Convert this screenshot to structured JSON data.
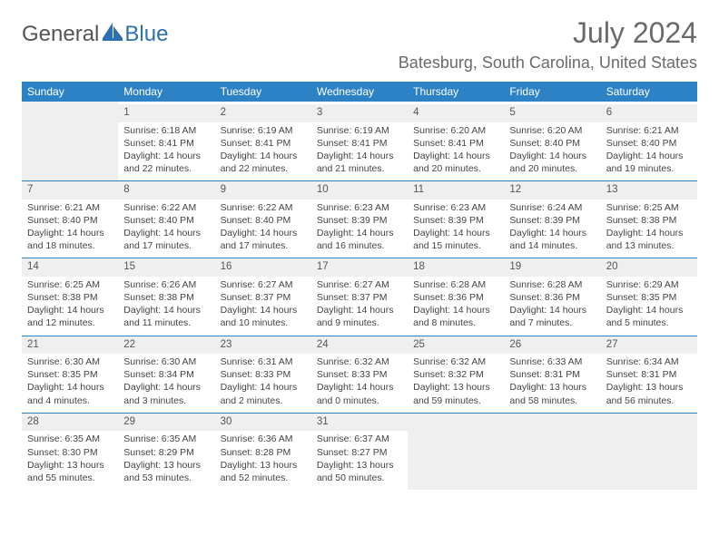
{
  "logo": {
    "general": "General",
    "blue": "Blue"
  },
  "title": "July 2024",
  "location": "Batesburg, South Carolina, United States",
  "colors": {
    "header_bg": "#2d82c6",
    "header_text": "#ffffff",
    "daynum_bg": "#efefef",
    "text": "#444444",
    "title_color": "#6a6a6a",
    "rule": "#2d82c6"
  },
  "day_headers": [
    "Sunday",
    "Monday",
    "Tuesday",
    "Wednesday",
    "Thursday",
    "Friday",
    "Saturday"
  ],
  "weeks": [
    [
      null,
      {
        "n": "1",
        "sr": "Sunrise: 6:18 AM",
        "ss": "Sunset: 8:41 PM",
        "d1": "Daylight: 14 hours",
        "d2": "and 22 minutes."
      },
      {
        "n": "2",
        "sr": "Sunrise: 6:19 AM",
        "ss": "Sunset: 8:41 PM",
        "d1": "Daylight: 14 hours",
        "d2": "and 22 minutes."
      },
      {
        "n": "3",
        "sr": "Sunrise: 6:19 AM",
        "ss": "Sunset: 8:41 PM",
        "d1": "Daylight: 14 hours",
        "d2": "and 21 minutes."
      },
      {
        "n": "4",
        "sr": "Sunrise: 6:20 AM",
        "ss": "Sunset: 8:41 PM",
        "d1": "Daylight: 14 hours",
        "d2": "and 20 minutes."
      },
      {
        "n": "5",
        "sr": "Sunrise: 6:20 AM",
        "ss": "Sunset: 8:40 PM",
        "d1": "Daylight: 14 hours",
        "d2": "and 20 minutes."
      },
      {
        "n": "6",
        "sr": "Sunrise: 6:21 AM",
        "ss": "Sunset: 8:40 PM",
        "d1": "Daylight: 14 hours",
        "d2": "and 19 minutes."
      }
    ],
    [
      {
        "n": "7",
        "sr": "Sunrise: 6:21 AM",
        "ss": "Sunset: 8:40 PM",
        "d1": "Daylight: 14 hours",
        "d2": "and 18 minutes."
      },
      {
        "n": "8",
        "sr": "Sunrise: 6:22 AM",
        "ss": "Sunset: 8:40 PM",
        "d1": "Daylight: 14 hours",
        "d2": "and 17 minutes."
      },
      {
        "n": "9",
        "sr": "Sunrise: 6:22 AM",
        "ss": "Sunset: 8:40 PM",
        "d1": "Daylight: 14 hours",
        "d2": "and 17 minutes."
      },
      {
        "n": "10",
        "sr": "Sunrise: 6:23 AM",
        "ss": "Sunset: 8:39 PM",
        "d1": "Daylight: 14 hours",
        "d2": "and 16 minutes."
      },
      {
        "n": "11",
        "sr": "Sunrise: 6:23 AM",
        "ss": "Sunset: 8:39 PM",
        "d1": "Daylight: 14 hours",
        "d2": "and 15 minutes."
      },
      {
        "n": "12",
        "sr": "Sunrise: 6:24 AM",
        "ss": "Sunset: 8:39 PM",
        "d1": "Daylight: 14 hours",
        "d2": "and 14 minutes."
      },
      {
        "n": "13",
        "sr": "Sunrise: 6:25 AM",
        "ss": "Sunset: 8:38 PM",
        "d1": "Daylight: 14 hours",
        "d2": "and 13 minutes."
      }
    ],
    [
      {
        "n": "14",
        "sr": "Sunrise: 6:25 AM",
        "ss": "Sunset: 8:38 PM",
        "d1": "Daylight: 14 hours",
        "d2": "and 12 minutes."
      },
      {
        "n": "15",
        "sr": "Sunrise: 6:26 AM",
        "ss": "Sunset: 8:38 PM",
        "d1": "Daylight: 14 hours",
        "d2": "and 11 minutes."
      },
      {
        "n": "16",
        "sr": "Sunrise: 6:27 AM",
        "ss": "Sunset: 8:37 PM",
        "d1": "Daylight: 14 hours",
        "d2": "and 10 minutes."
      },
      {
        "n": "17",
        "sr": "Sunrise: 6:27 AM",
        "ss": "Sunset: 8:37 PM",
        "d1": "Daylight: 14 hours",
        "d2": "and 9 minutes."
      },
      {
        "n": "18",
        "sr": "Sunrise: 6:28 AM",
        "ss": "Sunset: 8:36 PM",
        "d1": "Daylight: 14 hours",
        "d2": "and 8 minutes."
      },
      {
        "n": "19",
        "sr": "Sunrise: 6:28 AM",
        "ss": "Sunset: 8:36 PM",
        "d1": "Daylight: 14 hours",
        "d2": "and 7 minutes."
      },
      {
        "n": "20",
        "sr": "Sunrise: 6:29 AM",
        "ss": "Sunset: 8:35 PM",
        "d1": "Daylight: 14 hours",
        "d2": "and 5 minutes."
      }
    ],
    [
      {
        "n": "21",
        "sr": "Sunrise: 6:30 AM",
        "ss": "Sunset: 8:35 PM",
        "d1": "Daylight: 14 hours",
        "d2": "and 4 minutes."
      },
      {
        "n": "22",
        "sr": "Sunrise: 6:30 AM",
        "ss": "Sunset: 8:34 PM",
        "d1": "Daylight: 14 hours",
        "d2": "and 3 minutes."
      },
      {
        "n": "23",
        "sr": "Sunrise: 6:31 AM",
        "ss": "Sunset: 8:33 PM",
        "d1": "Daylight: 14 hours",
        "d2": "and 2 minutes."
      },
      {
        "n": "24",
        "sr": "Sunrise: 6:32 AM",
        "ss": "Sunset: 8:33 PM",
        "d1": "Daylight: 14 hours",
        "d2": "and 0 minutes."
      },
      {
        "n": "25",
        "sr": "Sunrise: 6:32 AM",
        "ss": "Sunset: 8:32 PM",
        "d1": "Daylight: 13 hours",
        "d2": "and 59 minutes."
      },
      {
        "n": "26",
        "sr": "Sunrise: 6:33 AM",
        "ss": "Sunset: 8:31 PM",
        "d1": "Daylight: 13 hours",
        "d2": "and 58 minutes."
      },
      {
        "n": "27",
        "sr": "Sunrise: 6:34 AM",
        "ss": "Sunset: 8:31 PM",
        "d1": "Daylight: 13 hours",
        "d2": "and 56 minutes."
      }
    ],
    [
      {
        "n": "28",
        "sr": "Sunrise: 6:35 AM",
        "ss": "Sunset: 8:30 PM",
        "d1": "Daylight: 13 hours",
        "d2": "and 55 minutes."
      },
      {
        "n": "29",
        "sr": "Sunrise: 6:35 AM",
        "ss": "Sunset: 8:29 PM",
        "d1": "Daylight: 13 hours",
        "d2": "and 53 minutes."
      },
      {
        "n": "30",
        "sr": "Sunrise: 6:36 AM",
        "ss": "Sunset: 8:28 PM",
        "d1": "Daylight: 13 hours",
        "d2": "and 52 minutes."
      },
      {
        "n": "31",
        "sr": "Sunrise: 6:37 AM",
        "ss": "Sunset: 8:27 PM",
        "d1": "Daylight: 13 hours",
        "d2": "and 50 minutes."
      },
      null,
      null,
      null
    ]
  ]
}
